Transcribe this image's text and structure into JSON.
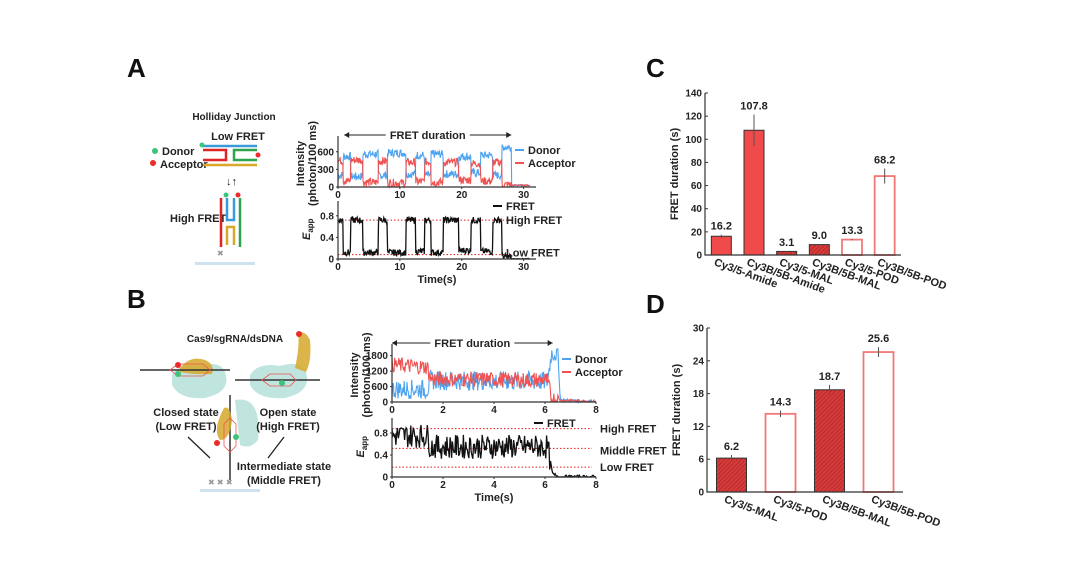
{
  "panels": {
    "A": {
      "label": "A",
      "diagram": {
        "title": "Holliday Junction",
        "low_state": "Low FRET",
        "high_state": "High FRET",
        "legend": [
          {
            "name": "Donor",
            "color": "#3cc47c"
          },
          {
            "name": "Acceptor",
            "color": "#ee2b2b"
          }
        ]
      }
    },
    "B": {
      "label": "B",
      "diagram": {
        "title": "Cas9/sgRNA/dsDNA",
        "closed_state": [
          "Closed state",
          "(Low FRET)"
        ],
        "open_state": [
          "Open state",
          "(High FRET)"
        ],
        "intermediate_state": [
          "Intermediate state",
          "(Middle FRET)"
        ]
      }
    },
    "C": {
      "label": "C"
    },
    "D": {
      "label": "D"
    }
  },
  "colors": {
    "donor": "#4da3f0",
    "acceptor": "#f05252",
    "fret": "#111111",
    "bar_fill": "#f04a4a",
    "bar_hatch": "#d63a3a",
    "bar_outline": "#f27878",
    "threshold": "#e01818"
  },
  "chart_data": [
    {
      "id": "A-intensity",
      "type": "line",
      "title": "",
      "xlabel": "",
      "ylabel": "Intensity (photon/100 ms)",
      "xlim": [
        0,
        32
      ],
      "ylim": [
        0,
        800
      ],
      "xticks": [
        0,
        10,
        20,
        30
      ],
      "yticks": [
        0,
        300,
        600
      ],
      "annotation": "FRET duration",
      "annotation_range": [
        1,
        28
      ],
      "legend": [
        "Donor",
        "Acceptor"
      ],
      "legend_position": "right",
      "series": [
        {
          "name": "Donor",
          "segments": [
            [
              0,
              0.8,
              200
            ],
            [
              0.8,
              2,
              520
            ],
            [
              2,
              4,
              180
            ],
            [
              4,
              6.5,
              560
            ],
            [
              6.5,
              8,
              200
            ],
            [
              8,
              11,
              580
            ],
            [
              11,
              12.5,
              220
            ],
            [
              12.5,
              14,
              540
            ],
            [
              14,
              15,
              200
            ],
            [
              15,
              17,
              560
            ],
            [
              17,
              19.5,
              220
            ],
            [
              19.5,
              21.5,
              520
            ],
            [
              21.5,
              23,
              240
            ],
            [
              23,
              25,
              540
            ],
            [
              25,
              26.5,
              200
            ],
            [
              26.5,
              28,
              680
            ],
            [
              28,
              32,
              30
            ]
          ]
        },
        {
          "name": "Acceptor",
          "segments": [
            [
              0,
              0.8,
              450
            ],
            [
              0.8,
              2,
              100
            ],
            [
              2,
              4,
              460
            ],
            [
              4,
              6.5,
              80
            ],
            [
              6.5,
              8,
              440
            ],
            [
              8,
              11,
              70
            ],
            [
              11,
              12.5,
              420
            ],
            [
              12.5,
              14,
              90
            ],
            [
              14,
              15,
              430
            ],
            [
              15,
              17,
              80
            ],
            [
              17,
              19.5,
              420
            ],
            [
              19.5,
              21.5,
              120
            ],
            [
              21.5,
              23,
              400
            ],
            [
              23,
              25,
              100
            ],
            [
              25,
              26.5,
              420
            ],
            [
              26.5,
              28,
              40
            ],
            [
              28,
              32,
              30
            ]
          ]
        }
      ]
    },
    {
      "id": "A-efficiency",
      "type": "line",
      "xlabel": "Time(s)",
      "ylabel": "E_app",
      "xlim": [
        0,
        32
      ],
      "ylim": [
        0,
        1.0
      ],
      "xticks": [
        0,
        10,
        20,
        30
      ],
      "yticks": [
        0,
        0.4,
        0.8
      ],
      "legend": [
        "FRET"
      ],
      "thresholds": [
        {
          "label": "High FRET",
          "value": 0.72
        },
        {
          "label": "Low FRET",
          "value": 0.08
        }
      ],
      "series": [
        {
          "name": "FRET",
          "segments": [
            [
              0,
              0.8,
              0.72
            ],
            [
              0.8,
              2,
              0.12
            ],
            [
              2,
              4,
              0.72
            ],
            [
              4,
              6.5,
              0.12
            ],
            [
              6.5,
              8,
              0.72
            ],
            [
              8,
              11,
              0.12
            ],
            [
              11,
              12.5,
              0.72
            ],
            [
              12.5,
              14,
              0.14
            ],
            [
              14,
              15,
              0.72
            ],
            [
              15,
              17,
              0.12
            ],
            [
              17,
              19.5,
              0.72
            ],
            [
              19.5,
              21.5,
              0.16
            ],
            [
              21.5,
              23,
              0.72
            ],
            [
              23,
              25,
              0.14
            ],
            [
              25,
              26.5,
              0.72
            ],
            [
              26.5,
              28,
              0.04
            ],
            [
              28,
              32,
              0.0
            ]
          ]
        }
      ]
    },
    {
      "id": "B-intensity",
      "type": "line",
      "ylabel": "Intensity (photon/100 ms)",
      "xlim": [
        0,
        8
      ],
      "ylim": [
        0,
        2100
      ],
      "xticks": [
        0,
        2,
        4,
        6,
        8
      ],
      "yticks": [
        0,
        600,
        1200,
        1800
      ],
      "annotation": "FRET duration",
      "annotation_range": [
        0,
        6.3
      ],
      "legend": [
        "Donor",
        "Acceptor"
      ],
      "legend_position": "right",
      "series": [
        {
          "name": "Donor",
          "base": [
            [
              0,
              500
            ],
            [
              1.4,
              500
            ],
            [
              1.5,
              850
            ],
            [
              6.1,
              800
            ],
            [
              6.25,
              1900
            ],
            [
              6.5,
              1900
            ],
            [
              6.6,
              80
            ],
            [
              8,
              20
            ]
          ]
        },
        {
          "name": "Acceptor",
          "base": [
            [
              0,
              1450
            ],
            [
              1.4,
              1350
            ],
            [
              1.5,
              900
            ],
            [
              6.1,
              850
            ],
            [
              6.25,
              150
            ],
            [
              6.5,
              80
            ],
            [
              8,
              20
            ]
          ]
        }
      ]
    },
    {
      "id": "B-efficiency",
      "type": "line",
      "xlabel": "Time(s)",
      "ylabel": "E_app",
      "xlim": [
        0,
        8
      ],
      "ylim": [
        0,
        1.0
      ],
      "xticks": [
        0,
        2,
        4,
        6,
        8
      ],
      "yticks": [
        0,
        0.4,
        0.8
      ],
      "legend": [
        "FRET"
      ],
      "thresholds": [
        {
          "label": "High FRET",
          "value": 0.88
        },
        {
          "label": "Middle FRET",
          "value": 0.52
        },
        {
          "label": "Low FRET",
          "value": 0.18
        }
      ],
      "series": [
        {
          "name": "FRET",
          "base": [
            [
              0,
              0.75
            ],
            [
              1.4,
              0.75
            ],
            [
              1.5,
              0.55
            ],
            [
              6.1,
              0.55
            ],
            [
              6.3,
              0.05
            ],
            [
              6.6,
              0.0
            ],
            [
              8,
              0.0
            ]
          ]
        }
      ]
    },
    {
      "id": "C",
      "type": "bar",
      "title": "",
      "xlabel": "",
      "ylabel": "FRET duration (s)",
      "ylim": [
        0,
        140
      ],
      "yticks": [
        0,
        20,
        40,
        60,
        80,
        100,
        120,
        140
      ],
      "categories": [
        "Cy3/5-Amide",
        "Cy3B/5B-Amide",
        "Cy3/5-MAL",
        "Cy3B/5B-MAL",
        "Cy3/5-POD",
        "Cy3B/5B-POD"
      ],
      "values": [
        16.2,
        107.8,
        3.1,
        9.0,
        13.3,
        68.2
      ],
      "errors": [
        1.5,
        13.5,
        0.3,
        0.3,
        0.6,
        6.5
      ],
      "styles": [
        "solid",
        "solid",
        "hatched",
        "hatched",
        "open",
        "open"
      ],
      "data_labels": [
        "16.2",
        "107.8",
        "3.1",
        "9.0",
        "13.3",
        "68.2"
      ]
    },
    {
      "id": "D",
      "type": "bar",
      "ylabel": "FRET duration (s)",
      "ylim": [
        0,
        30
      ],
      "yticks": [
        0,
        6,
        12,
        18,
        24,
        30
      ],
      "categories": [
        "Cy3/5-MAL",
        "Cy3/5-POD",
        "Cy3B/5B-MAL",
        "Cy3B/5B-POD"
      ],
      "values": [
        6.2,
        14.3,
        18.7,
        25.6
      ],
      "errors": [
        0.6,
        0.6,
        0.9,
        0.9
      ],
      "styles": [
        "hatched",
        "open",
        "hatched",
        "open"
      ],
      "data_labels": [
        "6.2",
        "14.3",
        "18.7",
        "25.6"
      ]
    }
  ]
}
